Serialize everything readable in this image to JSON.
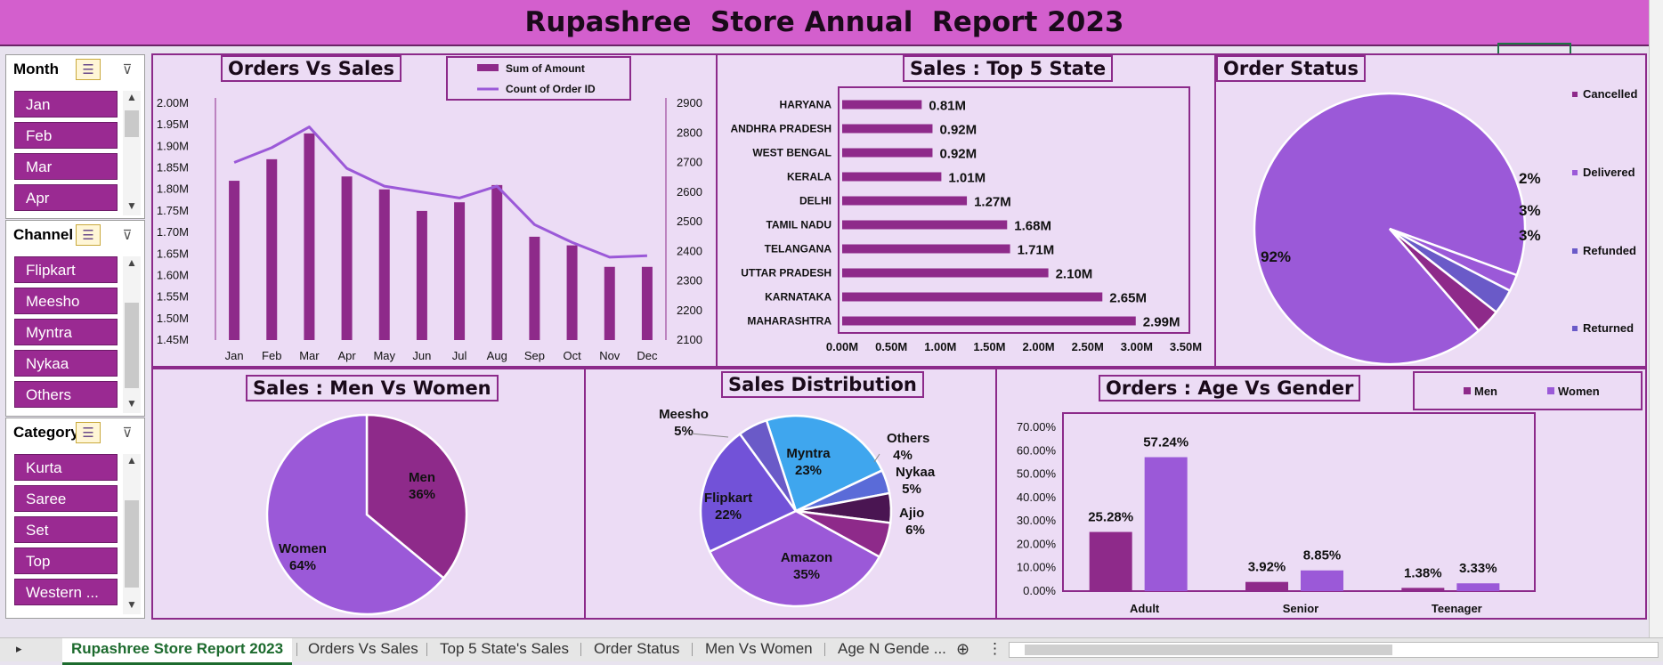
{
  "report_title": "Rupashree  Store Annual  Report 2023",
  "slicers": {
    "month": {
      "title": "Month",
      "items": [
        "Jan",
        "Feb",
        "Mar",
        "Apr"
      ]
    },
    "channel": {
      "title": "Channel",
      "items": [
        "Flipkart",
        "Meesho",
        "Myntra",
        "Nykaa",
        "Others"
      ]
    },
    "category": {
      "title": "Category",
      "items": [
        "Kurta",
        "Saree",
        "Set",
        "Top",
        "Western ..."
      ]
    }
  },
  "orders_vs_sales": {
    "title": "Orders Vs Sales",
    "legend": {
      "bar": "Sum of Amount",
      "line": "Count of Order ID"
    }
  },
  "top_states": {
    "title": "Sales : Top 5 State"
  },
  "order_status": {
    "title": "Order Status"
  },
  "men_women": {
    "title": "Sales : Men Vs Women"
  },
  "distribution": {
    "title": "Sales Distribution"
  },
  "age_gender": {
    "title": "Orders : Age Vs Gender",
    "legend": [
      "Men",
      "Women"
    ]
  },
  "colors": {
    "accent": "#8e2a8a",
    "purple": "#9b59d8",
    "title_bar": "#d35fcd",
    "panel_bg": "#ecdcf5"
  },
  "tabs": [
    "Rupashree  Store Report 2023",
    "Orders Vs Sales",
    "Top 5 State's Sales",
    "Order Status",
    "Men Vs Women",
    "Age N Gende ..."
  ],
  "chart_data": [
    {
      "type": "bar",
      "title": "Orders Vs Sales",
      "categories": [
        "Jan",
        "Feb",
        "Mar",
        "Apr",
        "May",
        "Jun",
        "Jul",
        "Aug",
        "Sep",
        "Oct",
        "Nov",
        "Dec"
      ],
      "series": [
        {
          "name": "Sum of Amount",
          "axis": "left",
          "kind": "bar",
          "values": [
            1.82,
            1.87,
            1.93,
            1.83,
            1.8,
            1.75,
            1.77,
            1.81,
            1.69,
            1.67,
            1.62,
            1.62
          ]
        },
        {
          "name": "Count of Order ID",
          "axis": "right",
          "kind": "line",
          "values": [
            2700,
            2750,
            2820,
            2680,
            2620,
            2600,
            2580,
            2620,
            2490,
            2430,
            2380,
            2385
          ]
        }
      ],
      "y_left_ticks": [
        "1.45M",
        "1.50M",
        "1.55M",
        "1.60M",
        "1.65M",
        "1.70M",
        "1.75M",
        "1.80M",
        "1.85M",
        "1.90M",
        "1.95M",
        "2.00M"
      ],
      "y_left_range": [
        1.45,
        2.0
      ],
      "y_right_ticks": [
        "2100",
        "2200",
        "2300",
        "2400",
        "2500",
        "2600",
        "2700",
        "2800",
        "2900"
      ],
      "y_right_range": [
        2100,
        2900
      ],
      "legend": "top"
    },
    {
      "type": "bar",
      "orientation": "horizontal",
      "title": "Sales : Top 5 State",
      "categories": [
        "HARYANA",
        "ANDHRA PRADESH",
        "WEST BENGAL",
        "KERALA",
        "DELHI",
        "TAMIL NADU",
        "TELANGANA",
        "UTTAR PRADESH",
        "KARNATAKA",
        "MAHARASHTRA"
      ],
      "values": [
        0.81,
        0.92,
        0.92,
        1.01,
        1.27,
        1.68,
        1.71,
        2.1,
        2.65,
        2.99
      ],
      "labels": [
        "0.81M",
        "0.92M",
        "0.92M",
        "1.01M",
        "1.27M",
        "1.68M",
        "1.71M",
        "2.10M",
        "2.65M",
        "2.99M"
      ],
      "x_ticks": [
        "0.00M",
        "0.50M",
        "1.00M",
        "1.50M",
        "2.00M",
        "2.50M",
        "3.00M",
        "3.50M"
      ],
      "xlim": [
        0,
        3.5
      ]
    },
    {
      "type": "pie",
      "title": "Order Status",
      "categories": [
        "Cancelled",
        "Delivered",
        "Refunded",
        "Returned"
      ],
      "values": [
        3,
        92,
        2,
        3
      ],
      "labels": [
        "3%",
        "92%",
        "2%",
        "3%"
      ],
      "legend": "right"
    },
    {
      "type": "pie",
      "title": "Sales : Men Vs Women",
      "categories": [
        "Men",
        "Women"
      ],
      "values": [
        36,
        64
      ],
      "labels": [
        "36%",
        "64%"
      ]
    },
    {
      "type": "pie",
      "title": "Sales Distribution",
      "categories": [
        "Myntra",
        "Others",
        "Nykaa",
        "Ajio",
        "Amazon",
        "Flipkart",
        "Meesho"
      ],
      "values": [
        23,
        4,
        5,
        6,
        35,
        22,
        5
      ],
      "labels": [
        "23%",
        "4%",
        "5%",
        "6%",
        "35%",
        "22%",
        "5%"
      ]
    },
    {
      "type": "bar",
      "title": "Orders : Age Vs Gender",
      "categories": [
        "Adult",
        "Senior",
        "Teenager"
      ],
      "series": [
        {
          "name": "Men",
          "values": [
            25.28,
            3.92,
            1.38
          ],
          "labels": [
            "25.28%",
            "3.92%",
            "1.38%"
          ]
        },
        {
          "name": "Women",
          "values": [
            57.24,
            8.85,
            3.33
          ],
          "labels": [
            "57.24%",
            "8.85%",
            "3.33%"
          ]
        }
      ],
      "y_ticks": [
        "0.00%",
        "10.00%",
        "20.00%",
        "30.00%",
        "40.00%",
        "50.00%",
        "60.00%",
        "70.00%"
      ],
      "ylim": [
        0,
        70
      ],
      "legend": "top-right"
    }
  ]
}
